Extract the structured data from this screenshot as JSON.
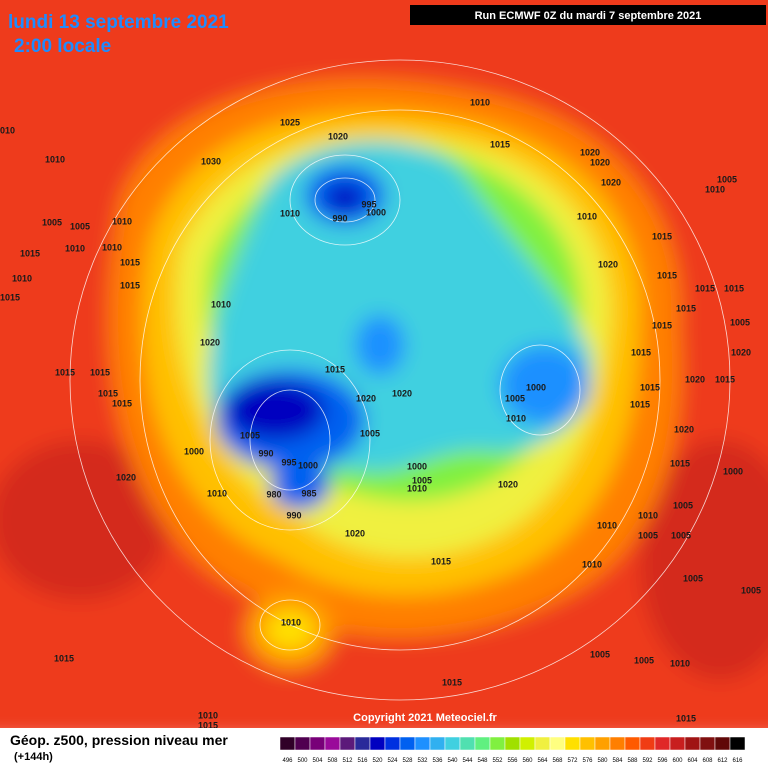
{
  "header": {
    "date": "lundi 13 septembre 2021",
    "time": "2:00 locale",
    "run": "Run ECMWF 0Z du mardi 7 septembre 2021"
  },
  "copyright": "Copyright 2021 Meteociel.fr",
  "footer": {
    "title": "Géop. z500, pression niveau mer",
    "lead": "(+144h)"
  },
  "isobar_labels": [
    "1010",
    "1025",
    "1020",
    "1015",
    "1020",
    "1020",
    "1030",
    "1010",
    "1010",
    "1005",
    "1020",
    "1010",
    "995",
    "1000",
    "990",
    "1010",
    "1005",
    "1005",
    "1010",
    "1010",
    "1010",
    "1010",
    "1015",
    "1015",
    "1015",
    "1020",
    "1015",
    "1010",
    "1015",
    "1015",
    "1015",
    "1015",
    "1010",
    "1015",
    "1015",
    "1005",
    "1020",
    "1020",
    "1015",
    "1015",
    "1015",
    "1015",
    "1020",
    "1015",
    "1015",
    "1000",
    "1020",
    "1020",
    "1015",
    "1015",
    "1005",
    "1015",
    "1020",
    "1010",
    "1005",
    "1005",
    "1000",
    "990",
    "995",
    "1000",
    "1000",
    "1015",
    "1000",
    "1020",
    "1005",
    "1010",
    "1020",
    "1010",
    "980",
    "985",
    "990",
    "1010",
    "1005",
    "1010",
    "1005",
    "1005",
    "1020",
    "1015",
    "1010",
    "1005",
    "1005",
    "1010",
    "1005",
    "1005",
    "1010",
    "1015",
    "1015",
    "1010",
    "1015",
    "1015"
  ],
  "legend": {
    "ticks": [
      496,
      500,
      504,
      508,
      512,
      516,
      520,
      524,
      528,
      532,
      536,
      540,
      544,
      548,
      552,
      556,
      560,
      564,
      568,
      572,
      576,
      580,
      584,
      588,
      592,
      596,
      600,
      604,
      608,
      612,
      616
    ],
    "colors": [
      "#300028",
      "#500050",
      "#780078",
      "#9a0a9a",
      "#5c1a7a",
      "#2a2a9a",
      "#0000c0",
      "#0030e0",
      "#0060f0",
      "#1e90ff",
      "#30b0f0",
      "#40d0e0",
      "#50e0b0",
      "#60f080",
      "#80f040",
      "#a0e000",
      "#d0f000",
      "#f0f040",
      "#ffff80",
      "#ffe000",
      "#ffc000",
      "#ffa000",
      "#ff7f00",
      "#ff5a00",
      "#f03c14",
      "#e02828",
      "#c81e1e",
      "#a01414",
      "#801010",
      "#600808",
      "#000000"
    ]
  }
}
